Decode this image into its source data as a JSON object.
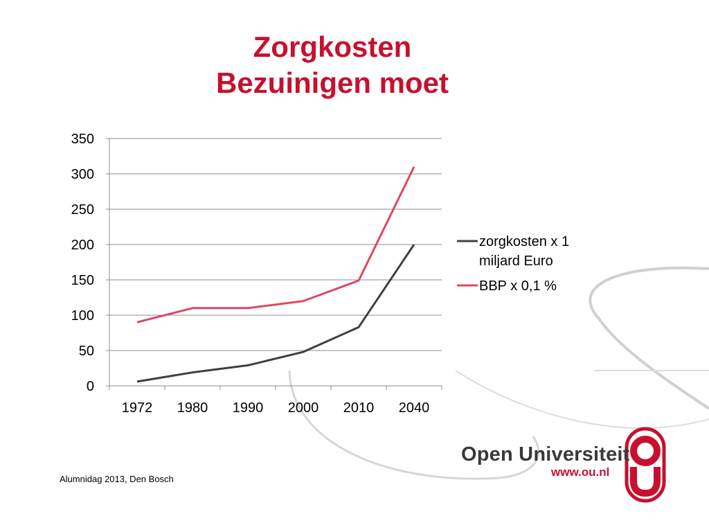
{
  "slide": {
    "title_line1": "Zorgkosten",
    "title_line2": "Bezuinigen moet",
    "footer": "Alumnidag 2013, Den Bosch",
    "logo_name": "Open Universiteit",
    "logo_url": "www.ou.nl",
    "logo_icon": "ou-logo-icon",
    "brand_color": "#c8102e"
  },
  "chart_data": {
    "type": "line",
    "categories": [
      "1972",
      "1980",
      "1990",
      "2000",
      "2010",
      "2040"
    ],
    "series": [
      {
        "name": "zorgkosten x 1 miljard Euro",
        "values": [
          6,
          19,
          29,
          48,
          83,
          200
        ],
        "color": "#404040"
      },
      {
        "name": "BBP x 0,1 %",
        "values": [
          90,
          110,
          110,
          120,
          149,
          310
        ],
        "color": "#e0475f"
      }
    ],
    "ylim": [
      0,
      350
    ],
    "yticks": [
      0,
      50,
      100,
      150,
      200,
      250,
      300,
      350
    ],
    "grid": true,
    "legend": "right",
    "title": "",
    "xlabel": "",
    "ylabel": ""
  }
}
